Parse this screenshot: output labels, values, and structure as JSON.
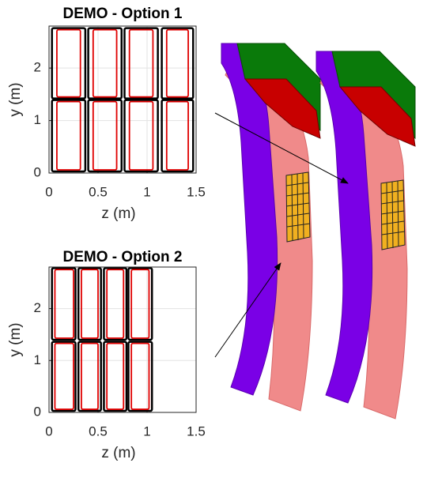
{
  "chart_data": [
    {
      "type": "rects",
      "title": "DEMO - Option 1",
      "xlabel": "z (m)",
      "ylabel": "y (m)",
      "xlim": [
        0,
        1.5
      ],
      "xticks": [
        0,
        0.5,
        1,
        1.5
      ],
      "ylim": [
        0,
        2.8
      ],
      "yticks": [
        0,
        1,
        2
      ],
      "grid": true,
      "frame_color": "#000000",
      "coil_color": "#e00000",
      "columns": [
        [
          0.03,
          0.37
        ],
        [
          0.4,
          0.74
        ],
        [
          0.77,
          1.11
        ],
        [
          1.15,
          1.47
        ]
      ],
      "inner_columns": [
        [
          0.08,
          0.32
        ],
        [
          0.45,
          0.69
        ],
        [
          0.82,
          1.06
        ],
        [
          1.2,
          1.42
        ]
      ],
      "rows": [
        [
          0.03,
          1.39
        ],
        [
          1.42,
          2.76
        ]
      ],
      "inner_rows": [
        [
          0.06,
          1.36
        ],
        [
          1.45,
          2.73
        ]
      ]
    },
    {
      "type": "rects",
      "title": "DEMO - Option 2",
      "xlabel": "z (m)",
      "ylabel": "y (m)",
      "xlim": [
        0,
        1.5
      ],
      "xticks": [
        0,
        0.5,
        1,
        1.5
      ],
      "ylim": [
        0,
        2.8
      ],
      "yticks": [
        0,
        1,
        2
      ],
      "grid": true,
      "frame_color": "#000000",
      "coil_color": "#e00000",
      "columns": [
        [
          0.03,
          0.27
        ],
        [
          0.3,
          0.53
        ],
        [
          0.56,
          0.79
        ],
        [
          0.81,
          1.05
        ]
      ],
      "inner_columns": [
        [
          0.06,
          0.25
        ],
        [
          0.33,
          0.5
        ],
        [
          0.59,
          0.76
        ],
        [
          0.84,
          1.02
        ]
      ],
      "rows": [
        [
          0.03,
          1.36
        ],
        [
          1.4,
          2.78
        ]
      ],
      "inner_rows": [
        [
          0.06,
          1.33
        ],
        [
          1.43,
          2.75
        ]
      ]
    }
  ]
}
